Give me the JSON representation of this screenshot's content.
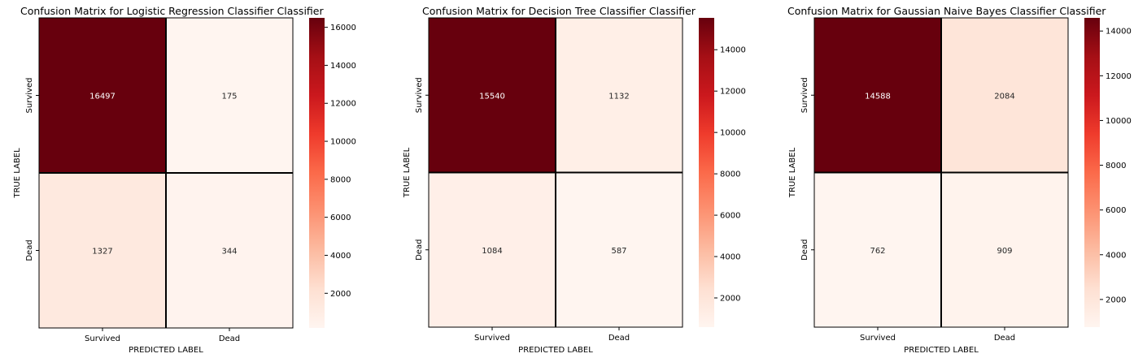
{
  "chart_data": [
    {
      "type": "heatmap",
      "title": "Confusion Matrix for Logistic Regression Classifier Classifier",
      "xlabel": "PREDICTED LABEL",
      "ylabel": "TRUE LABEL",
      "x_categories": [
        "Survived",
        "Dead"
      ],
      "y_categories": [
        "Survived",
        "Dead"
      ],
      "values": [
        [
          16497,
          175
        ],
        [
          1327,
          344
        ]
      ],
      "colormap": "Reds",
      "colorbar_ticks": [
        2000,
        4000,
        6000,
        8000,
        10000,
        12000,
        14000,
        16000
      ]
    },
    {
      "type": "heatmap",
      "title": "Confusion Matrix for  Decision Tree Classifier Classifier",
      "xlabel": "PREDICTED LABEL",
      "ylabel": "TRUE LABEL",
      "x_categories": [
        "Survived",
        "Dead"
      ],
      "y_categories": [
        "Survived",
        "Dead"
      ],
      "values": [
        [
          15540,
          1132
        ],
        [
          1084,
          587
        ]
      ],
      "colormap": "Reds",
      "colorbar_ticks": [
        2000,
        4000,
        6000,
        8000,
        10000,
        12000,
        14000
      ]
    },
    {
      "type": "heatmap",
      "title": "Confusion Matrix for Gaussian Naive Bayes Classifier Classifier",
      "xlabel": "PREDICTED LABEL",
      "ylabel": "TRUE LABEL",
      "x_categories": [
        "Survived",
        "Dead"
      ],
      "y_categories": [
        "Survived",
        "Dead"
      ],
      "values": [
        [
          14588,
          2084
        ],
        [
          762,
          909
        ]
      ],
      "colormap": "Reds",
      "colorbar_ticks": [
        2000,
        4000,
        6000,
        8000,
        10000,
        12000,
        14000
      ]
    }
  ]
}
